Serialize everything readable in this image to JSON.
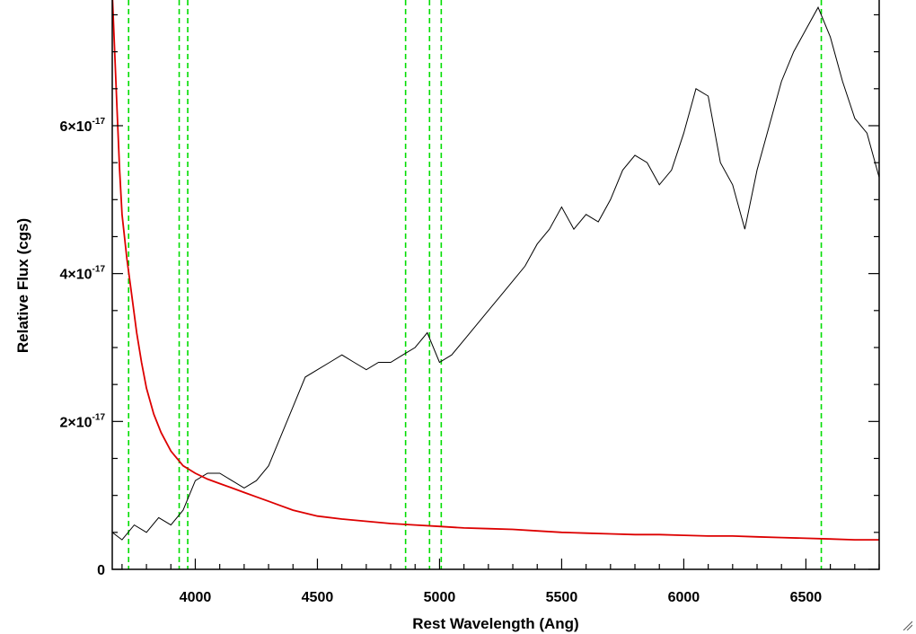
{
  "chart_data": {
    "type": "line",
    "title": "",
    "xlabel": "Rest Wavelength (Ang)",
    "ylabel": "Relative Flux (cgs)",
    "xlim": [
      3660,
      6800
    ],
    "ylim": [
      0,
      7.7e-17
    ],
    "x_ticks": [
      {
        "value": 4000,
        "label": "4000"
      },
      {
        "value": 4500,
        "label": "4500"
      },
      {
        "value": 5000,
        "label": "5000"
      },
      {
        "value": 5500,
        "label": "5500"
      },
      {
        "value": 6000,
        "label": "6000"
      },
      {
        "value": 6500,
        "label": "6500"
      }
    ],
    "y_ticks": [
      {
        "value": 0,
        "mant": "0",
        "exp": ""
      },
      {
        "value": 2e-17,
        "mant": "2×10",
        "exp": "-17"
      },
      {
        "value": 4e-17,
        "mant": "4×10",
        "exp": "-17"
      },
      {
        "value": 6e-17,
        "mant": "6×10",
        "exp": "-17"
      }
    ],
    "reference_lines_x": [
      3727,
      3934,
      3969,
      4861,
      4959,
      5007,
      6563
    ],
    "reference_line_color": "#00dd00",
    "series": [
      {
        "color": "#000000",
        "x": [
          3660,
          3700,
          3750,
          3800,
          3850,
          3900,
          3950,
          4000,
          4050,
          4100,
          4150,
          4200,
          4250,
          4300,
          4350,
          4400,
          4450,
          4500,
          4550,
          4600,
          4650,
          4700,
          4750,
          4800,
          4850,
          4900,
          4950,
          5000,
          5050,
          5100,
          5150,
          5200,
          5250,
          5300,
          5350,
          5400,
          5450,
          5500,
          5550,
          5600,
          5650,
          5700,
          5750,
          5800,
          5850,
          5900,
          5950,
          6000,
          6050,
          6100,
          6150,
          6200,
          6250,
          6300,
          6350,
          6400,
          6450,
          6500,
          6550,
          6600,
          6650,
          6700,
          6750,
          6800
        ],
        "y": [
          5e-18,
          4e-18,
          6e-18,
          5e-18,
          7e-18,
          6e-18,
          8e-18,
          1.2e-17,
          1.3e-17,
          1.3e-17,
          1.2e-17,
          1.1e-17,
          1.2e-17,
          1.4e-17,
          1.8e-17,
          2.2e-17,
          2.6e-17,
          2.7e-17,
          2.8e-17,
          2.9e-17,
          2.8e-17,
          2.7e-17,
          2.8e-17,
          2.8e-17,
          2.9e-17,
          3e-17,
          3.2e-17,
          2.8e-17,
          2.9e-17,
          3.1e-17,
          3.3e-17,
          3.5e-17,
          3.7e-17,
          3.9e-17,
          4.1e-17,
          4.4e-17,
          4.6e-17,
          4.9e-17,
          4.6e-17,
          4.8e-17,
          4.7e-17,
          5e-17,
          5.4e-17,
          5.6e-17,
          5.5e-17,
          5.2e-17,
          5.4e-17,
          5.9e-17,
          6.5e-17,
          6.4e-17,
          5.5e-17,
          5.2e-17,
          4.6e-17,
          5.4e-17,
          6e-17,
          6.6e-17,
          7e-17,
          7.3e-17,
          7.6e-17,
          7.2e-17,
          6.6e-17,
          6.1e-17,
          5.9e-17,
          5.3e-17
        ]
      },
      {
        "color": "#dd0000",
        "x": [
          3660,
          3670,
          3680,
          3690,
          3700,
          3720,
          3740,
          3760,
          3780,
          3800,
          3830,
          3860,
          3900,
          3950,
          4000,
          4050,
          4100,
          4150,
          4200,
          4250,
          4300,
          4350,
          4400,
          4500,
          4600,
          4700,
          4800,
          4900,
          5000,
          5100,
          5200,
          5300,
          5400,
          5500,
          5600,
          5700,
          5800,
          5900,
          6000,
          6100,
          6200,
          6300,
          6400,
          6500,
          6600,
          6700,
          6800
        ],
        "y": [
          7.8e-17,
          7e-17,
          6.2e-17,
          5.4e-17,
          4.8e-17,
          4.2e-17,
          3.7e-17,
          3.2e-17,
          2.8e-17,
          2.45e-17,
          2.1e-17,
          1.85e-17,
          1.6e-17,
          1.4e-17,
          1.3e-17,
          1.22e-17,
          1.16e-17,
          1.1e-17,
          1.04e-17,
          9.8e-18,
          9.2e-18,
          8.6e-18,
          8e-18,
          7.2e-18,
          6.8e-18,
          6.5e-18,
          6.2e-18,
          6e-18,
          5.8e-18,
          5.6e-18,
          5.5e-18,
          5.4e-18,
          5.2e-18,
          5e-18,
          4.9e-18,
          4.8e-18,
          4.7e-18,
          4.7e-18,
          4.6e-18,
          4.5e-18,
          4.5e-18,
          4.4e-18,
          4.3e-18,
          4.2e-18,
          4.1e-18,
          4e-18,
          4e-18
        ]
      }
    ]
  }
}
